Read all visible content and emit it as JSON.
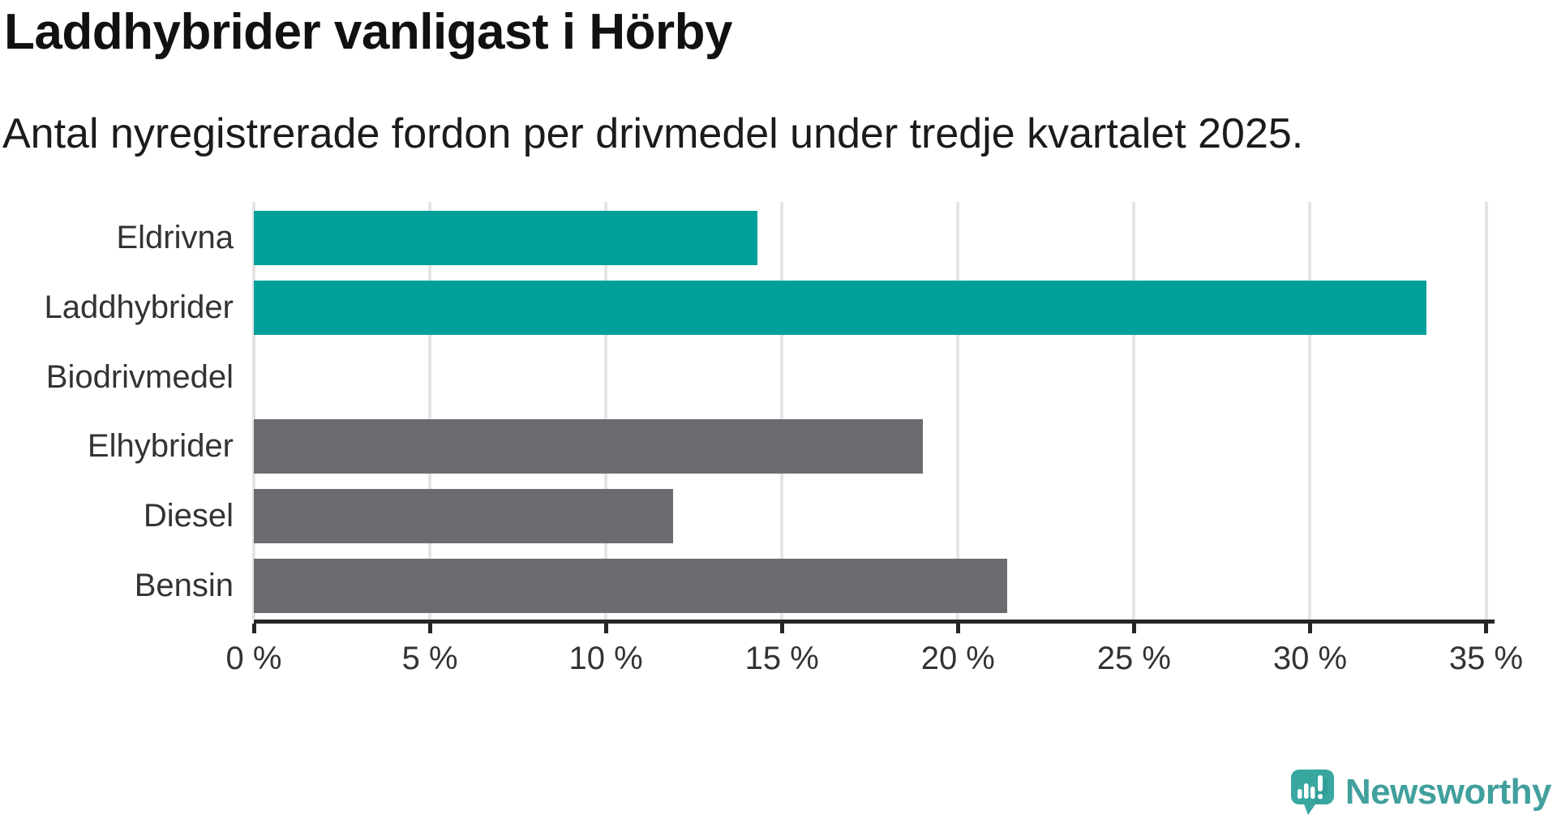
{
  "title": "Laddhybrider vanligast i Hörby",
  "subtitle": "Antal nyregistrerade fordon per drivmedel under tredje kvartalet 2025.",
  "chart_data": {
    "type": "bar",
    "orientation": "horizontal",
    "categories": [
      "Eldrivna",
      "Laddhybrider",
      "Biodrivmedel",
      "Elhybrider",
      "Diesel",
      "Bensin"
    ],
    "values": [
      14.3,
      33.3,
      0,
      19.0,
      11.9,
      21.4
    ],
    "value_unit": "%",
    "bar_colors": [
      "#00a09a",
      "#00a09a",
      "#6b6b70",
      "#6b6b70",
      "#6b6b70",
      "#6b6b70"
    ],
    "highlight_color": "#00a09a",
    "default_color": "#6b6b70",
    "x_ticks": [
      "0 %",
      "5 %",
      "10 %",
      "15 %",
      "20 %",
      "25 %",
      "30 %",
      "35 %"
    ],
    "xlim": [
      0,
      35
    ],
    "grid": true,
    "gridline_color": "#e4e4e4",
    "axis_color": "#262626",
    "label_color": "#333333",
    "title": "Laddhybrider vanligast i Hörby",
    "xlabel": "",
    "ylabel": ""
  },
  "branding": {
    "logo_text": "Newsworthy",
    "logo_text_color": "#41a09d",
    "logo_icon_color": "#38a7a0",
    "logo_icon_shadow_color": "#2d948f",
    "logo_icon_name": "newsworthy-speech-bubble-chart-icon"
  }
}
